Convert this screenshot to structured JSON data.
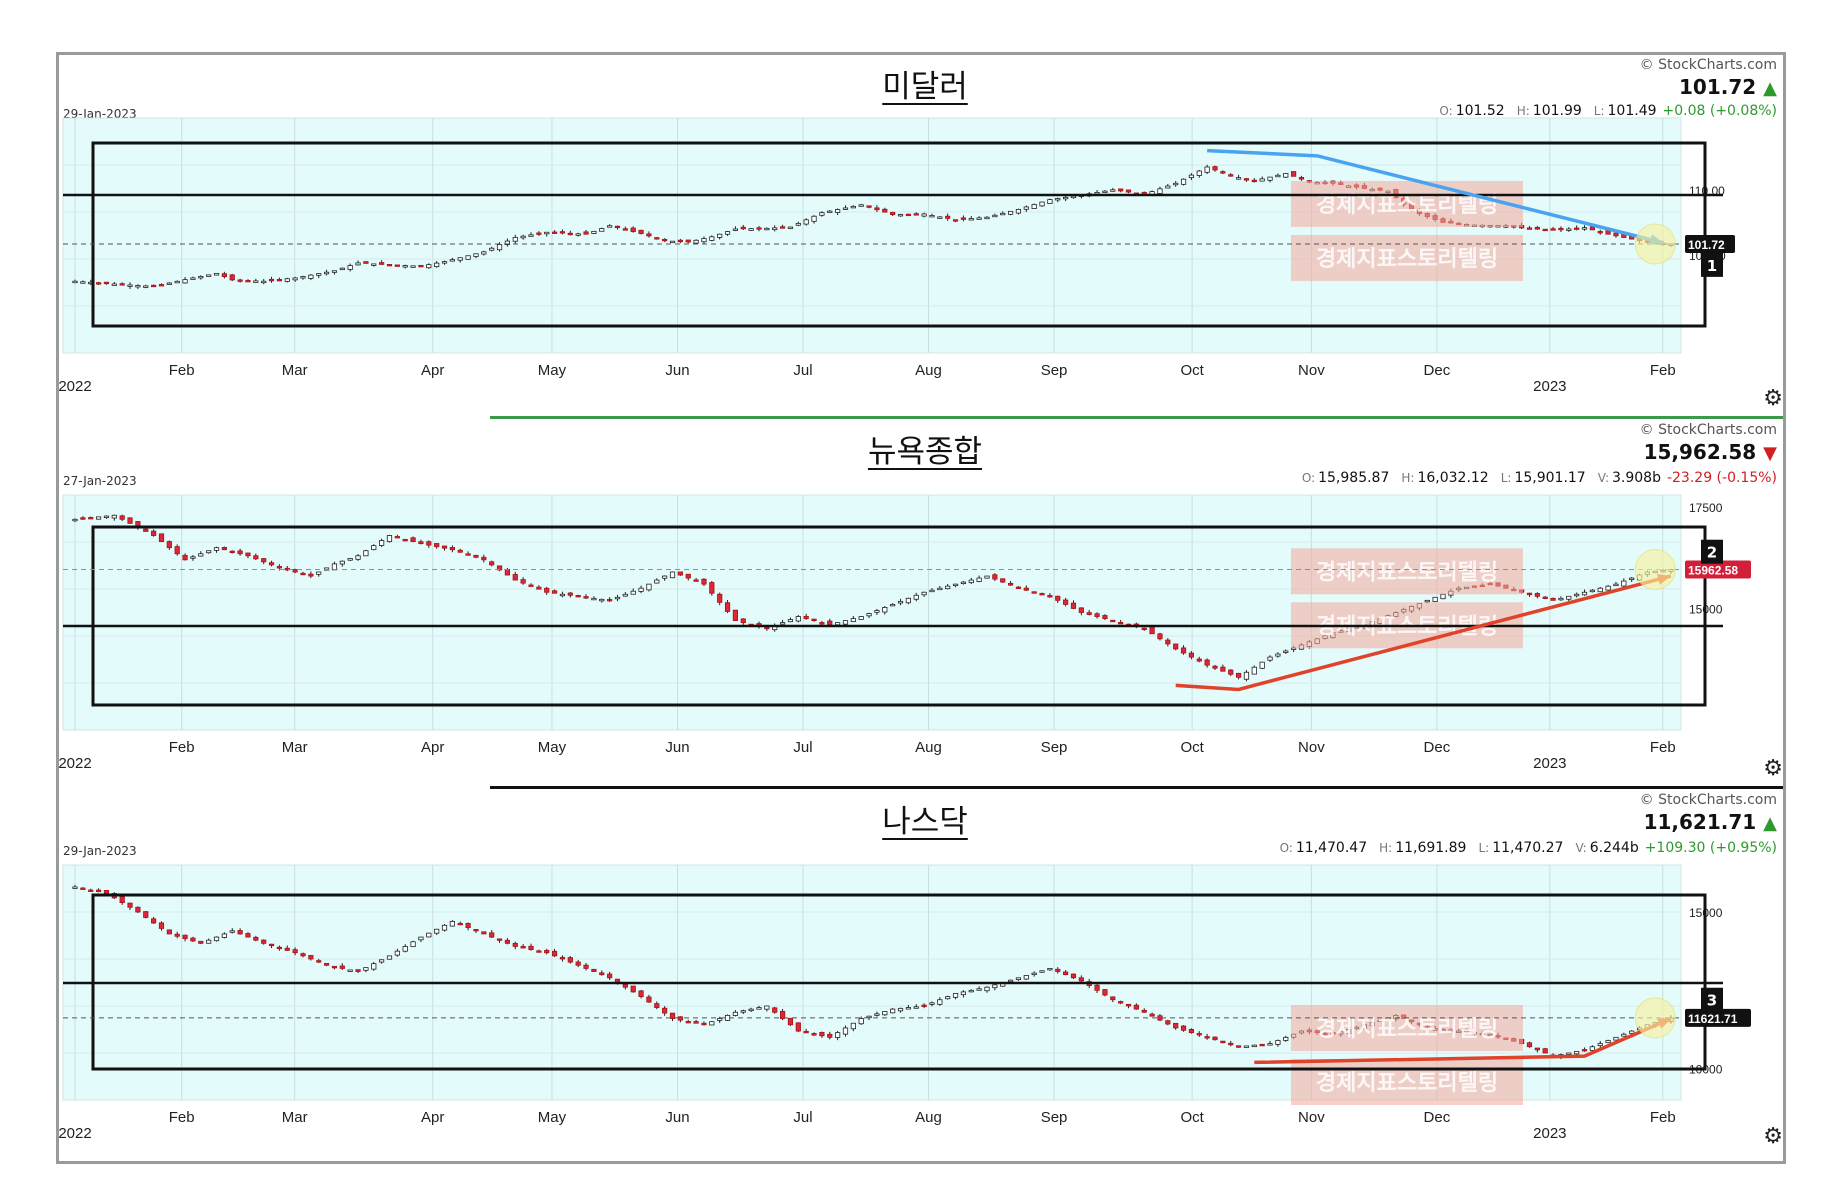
{
  "source": "© StockCharts.com",
  "watermark": "경제지표스토리텔링",
  "chart_data": [
    {
      "type": "candlestick",
      "title": "미달러",
      "date": "29-Jan-2023",
      "last": "101.72",
      "direction": "up",
      "ohlc": [
        {
          "k": "O:",
          "v": "101.52"
        },
        {
          "k": "H:",
          "v": "101.99"
        },
        {
          "k": "L:",
          "v": "101.49"
        }
      ],
      "volume": null,
      "change": "+0.08 (+0.08%)",
      "price_tag": "101.72",
      "box_label": "1",
      "y_ticks": [
        {
          "v": 110,
          "label": "110.00"
        },
        {
          "v": 100,
          "label": "100.00"
        }
      ],
      "ylim": [
        85,
        121
      ],
      "x_labels": [
        {
          "label": "2022",
          "year": true
        },
        "Feb",
        "Mar",
        "Apr",
        "May",
        "Jun",
        "Jul",
        "Aug",
        "Sep",
        "Oct",
        "Nov",
        "Dec",
        {
          "label": "2023",
          "year": true
        },
        "Feb"
      ],
      "series": {
        "name": "Close",
        "points": [
          [
            0,
            96.0
          ],
          [
            6,
            95.5
          ],
          [
            10,
            95.2
          ],
          [
            15,
            96.5
          ],
          [
            18,
            97.2
          ],
          [
            20,
            96.2
          ],
          [
            24,
            96.0
          ],
          [
            28,
            96.5
          ],
          [
            33,
            97.6
          ],
          [
            36,
            98.8
          ],
          [
            40,
            98.5
          ],
          [
            44,
            98.3
          ],
          [
            47,
            99.0
          ],
          [
            52,
            100.5
          ],
          [
            56,
            102.7
          ],
          [
            60,
            103.5
          ],
          [
            65,
            103.2
          ],
          [
            68,
            104.5
          ],
          [
            72,
            103.3
          ],
          [
            75,
            102.2
          ],
          [
            78,
            102.0
          ],
          [
            81,
            102.8
          ],
          [
            84,
            104.0
          ],
          [
            88,
            104.1
          ],
          [
            91,
            104.3
          ],
          [
            95,
            106.5
          ],
          [
            100,
            107.7
          ],
          [
            104,
            106.2
          ],
          [
            108,
            106.3
          ],
          [
            112,
            105.4
          ],
          [
            116,
            105.8
          ],
          [
            120,
            107.0
          ],
          [
            124,
            108.5
          ],
          [
            128,
            109.2
          ],
          [
            132,
            110.0
          ],
          [
            136,
            109.3
          ],
          [
            140,
            111.0
          ],
          [
            144,
            113.5
          ],
          [
            147,
            112.1
          ],
          [
            150,
            111.4
          ],
          [
            154,
            112.5
          ],
          [
            157,
            111.2
          ],
          [
            160,
            111.0
          ],
          [
            164,
            110.2
          ],
          [
            167,
            109.8
          ],
          [
            170,
            106.8
          ],
          [
            174,
            105.0
          ],
          [
            178,
            104.6
          ],
          [
            182,
            104.5
          ],
          [
            185,
            104.0
          ],
          [
            189,
            103.9
          ],
          [
            192,
            104.2
          ],
          [
            195,
            103.2
          ],
          [
            199,
            102.2
          ],
          [
            203,
            101.7
          ]
        ]
      },
      "trendlines": [
        {
          "color": "#4aa3f0",
          "points": [
            [
              144,
              116
            ],
            [
              158,
              115.2
            ],
            [
              202,
              101.9
            ]
          ]
        }
      ]
    },
    {
      "type": "candlestick",
      "title": "뉴욕종합",
      "date": "27-Jan-2023",
      "last": "15,962.58",
      "direction": "down",
      "ohlc": [
        {
          "k": "O:",
          "v": "15,985.87"
        },
        {
          "k": "H:",
          "v": "16,032.12"
        },
        {
          "k": "L:",
          "v": "15,901.17"
        },
        {
          "k": "V:",
          "v": "3.908b"
        }
      ],
      "volume": "3.908b",
      "change": "-23.29 (-0.15%)",
      "price_tag": "15962.58",
      "box_label": "2",
      "y_ticks": [
        {
          "v": 17500,
          "label": "17500"
        },
        {
          "v": 15000,
          "label": "15000"
        }
      ],
      "ylim": [
        12000,
        17800
      ],
      "x_labels": [
        {
          "label": "2022",
          "year": true
        },
        "Feb",
        "Mar",
        "Apr",
        "May",
        "Jun",
        "Jul",
        "Aug",
        "Sep",
        "Oct",
        "Nov",
        "Dec",
        {
          "label": "2023",
          "year": true
        },
        "Feb"
      ],
      "series": {
        "name": "Close",
        "points": [
          [
            0,
            17200
          ],
          [
            5,
            17300
          ],
          [
            10,
            16800
          ],
          [
            14,
            16200
          ],
          [
            18,
            16500
          ],
          [
            22,
            16300
          ],
          [
            26,
            16000
          ],
          [
            30,
            15800
          ],
          [
            33,
            16100
          ],
          [
            36,
            16300
          ],
          [
            40,
            16800
          ],
          [
            44,
            16600
          ],
          [
            48,
            16450
          ],
          [
            52,
            16200
          ],
          [
            56,
            15700
          ],
          [
            60,
            15400
          ],
          [
            64,
            15300
          ],
          [
            68,
            15200
          ],
          [
            72,
            15500
          ],
          [
            76,
            15900
          ],
          [
            80,
            15600
          ],
          [
            84,
            14700
          ],
          [
            88,
            14500
          ],
          [
            92,
            14800
          ],
          [
            96,
            14600
          ],
          [
            100,
            14800
          ],
          [
            104,
            15100
          ],
          [
            108,
            15400
          ],
          [
            112,
            15600
          ],
          [
            116,
            15800
          ],
          [
            120,
            15500
          ],
          [
            124,
            15300
          ],
          [
            128,
            14900
          ],
          [
            132,
            14700
          ],
          [
            136,
            14500
          ],
          [
            140,
            14000
          ],
          [
            144,
            13600
          ],
          [
            148,
            13300
          ],
          [
            152,
            13800
          ],
          [
            156,
            14100
          ],
          [
            160,
            14400
          ],
          [
            164,
            14600
          ],
          [
            168,
            14900
          ],
          [
            172,
            15200
          ],
          [
            176,
            15500
          ],
          [
            180,
            15600
          ],
          [
            184,
            15400
          ],
          [
            188,
            15200
          ],
          [
            192,
            15400
          ],
          [
            196,
            15600
          ],
          [
            200,
            15900
          ],
          [
            203,
            15960
          ]
        ]
      },
      "trendlines": [
        {
          "color": "#e0432a",
          "points": [
            [
              140,
              13100
            ],
            [
              148,
              13000
            ],
            [
              203,
              15800
            ]
          ]
        }
      ]
    },
    {
      "type": "candlestick",
      "title": "나스닥",
      "date": "29-Jan-2023",
      "last": "11,621.71",
      "direction": "up",
      "ohlc": [
        {
          "k": "O:",
          "v": "11,470.47"
        },
        {
          "k": "H:",
          "v": "11,691.89"
        },
        {
          "k": "L:",
          "v": "11,470.27"
        },
        {
          "k": "V:",
          "v": "6.244b"
        }
      ],
      "volume": "6.244b",
      "change": "+109.30 (+0.95%)",
      "price_tag": "11621.71",
      "box_label": "3",
      "y_ticks": [
        {
          "v": 15000,
          "label": "15000"
        },
        {
          "v": 10000,
          "label": "10000"
        }
      ],
      "ylim": [
        9000,
        16500
      ],
      "x_labels": [
        {
          "label": "2022",
          "year": true
        },
        "Feb",
        "Mar",
        "Apr",
        "May",
        "Jun",
        "Jul",
        "Aug",
        "Sep",
        "Oct",
        "Nov",
        "Dec",
        {
          "label": "2023",
          "year": true
        },
        "Feb"
      ],
      "series": {
        "name": "Close",
        "points": [
          [
            0,
            15800
          ],
          [
            4,
            15600
          ],
          [
            8,
            15000
          ],
          [
            12,
            14300
          ],
          [
            16,
            14000
          ],
          [
            20,
            14400
          ],
          [
            24,
            14000
          ],
          [
            28,
            13700
          ],
          [
            32,
            13300
          ],
          [
            36,
            13100
          ],
          [
            40,
            13600
          ],
          [
            44,
            14200
          ],
          [
            48,
            14700
          ],
          [
            52,
            14300
          ],
          [
            56,
            13900
          ],
          [
            60,
            13700
          ],
          [
            64,
            13300
          ],
          [
            68,
            12900
          ],
          [
            72,
            12300
          ],
          [
            76,
            11600
          ],
          [
            80,
            11400
          ],
          [
            84,
            11800
          ],
          [
            88,
            12000
          ],
          [
            92,
            11200
          ],
          [
            96,
            11000
          ],
          [
            100,
            11600
          ],
          [
            104,
            11900
          ],
          [
            108,
            12000
          ],
          [
            112,
            12400
          ],
          [
            116,
            12600
          ],
          [
            120,
            12900
          ],
          [
            124,
            13200
          ],
          [
            128,
            12800
          ],
          [
            132,
            12200
          ],
          [
            136,
            11800
          ],
          [
            140,
            11300
          ],
          [
            144,
            11000
          ],
          [
            148,
            10700
          ],
          [
            152,
            10800
          ],
          [
            156,
            11200
          ],
          [
            160,
            11100
          ],
          [
            164,
            11400
          ],
          [
            168,
            11700
          ],
          [
            172,
            11300
          ],
          [
            176,
            11200
          ],
          [
            180,
            11100
          ],
          [
            184,
            10800
          ],
          [
            188,
            10400
          ],
          [
            192,
            10600
          ],
          [
            196,
            11000
          ],
          [
            200,
            11400
          ],
          [
            203,
            11620
          ]
        ]
      },
      "trendlines": [
        {
          "color": "#e0432a",
          "points": [
            [
              150,
              10200
            ],
            [
              192,
              10400
            ],
            [
              203,
              11600
            ]
          ]
        }
      ]
    }
  ]
}
